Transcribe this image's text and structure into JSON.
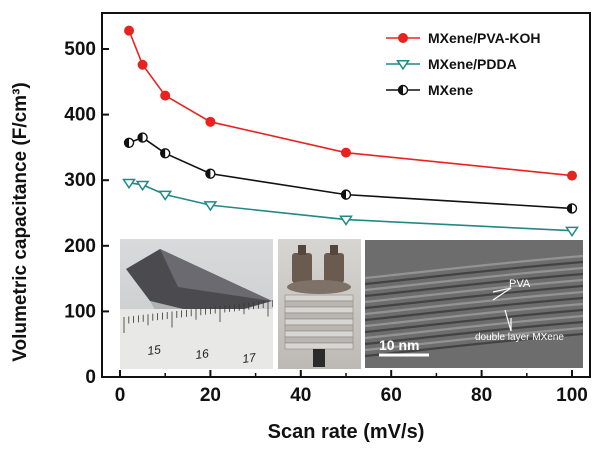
{
  "chart_data": {
    "type": "line",
    "xlabel": "Scan rate (mV/s)",
    "ylabel": "Volumetric capacitance (F/cm³)",
    "xlim": [
      0,
      100
    ],
    "ylim": [
      0,
      550
    ],
    "x_ticks": [
      0,
      20,
      40,
      60,
      80,
      100
    ],
    "y_ticks": [
      0,
      100,
      200,
      300,
      400,
      500
    ],
    "grid": false,
    "legend": "top-right",
    "series": [
      {
        "name": "MXene/PVA-KOH",
        "color": "#e8231f",
        "marker": "circle-filled",
        "x": [
          2,
          5,
          10,
          20,
          50,
          100
        ],
        "y": [
          528,
          476,
          429,
          389,
          342,
          307
        ]
      },
      {
        "name": "MXene/PDDA",
        "color": "#1f8a86",
        "marker": "triangle-down",
        "x": [
          2,
          5,
          10,
          20,
          50,
          100
        ],
        "y": [
          296,
          293,
          278,
          262,
          240,
          223
        ]
      },
      {
        "name": "MXene",
        "color": "#111111",
        "marker": "circle-half",
        "x": [
          2,
          5,
          10,
          20,
          50,
          100
        ],
        "y": [
          357,
          365,
          341,
          310,
          278,
          257
        ]
      }
    ]
  },
  "insets": {
    "ruler_labels": [
      "15",
      "16",
      "17"
    ],
    "tem_scale_label": "10 nm",
    "tem_annotations": [
      "PVA",
      "double layer MXene"
    ]
  }
}
